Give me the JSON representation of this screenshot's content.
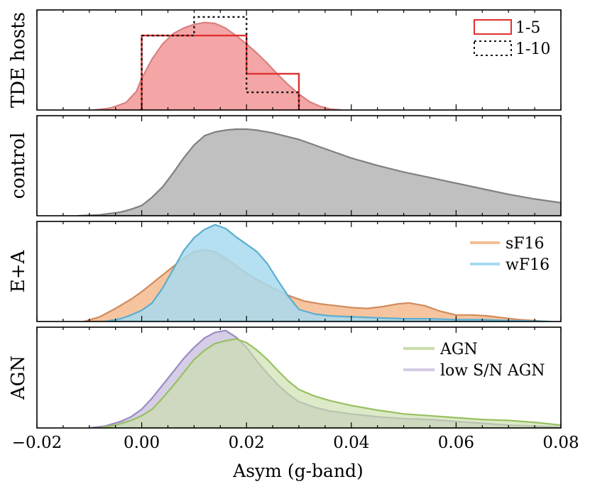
{
  "chart_data": {
    "type": "area",
    "xlabel": "Asym (g-band)",
    "xlim": [
      -0.02,
      0.08
    ],
    "xticks": [
      -0.02,
      0.0,
      0.02,
      0.04,
      0.06,
      0.08
    ],
    "xtick_labels": [
      "−0.02",
      "0.00",
      "0.02",
      "0.04",
      "0.06",
      "0.08"
    ],
    "panels": [
      {
        "ylabel": "TDE hosts",
        "ymax": 1.0,
        "series": [
          {
            "name": "TDE hosts KDE",
            "style": "fill",
            "fill": "#f4a6a6",
            "stroke": "#d98080",
            "x": [
              -0.009,
              -0.006,
              -0.003,
              -0.001,
              0.0,
              0.002,
              0.004,
              0.006,
              0.008,
              0.01,
              0.012,
              0.014,
              0.016,
              0.018,
              0.02,
              0.022,
              0.024,
              0.026,
              0.028,
              0.03,
              0.032,
              0.034,
              0.036,
              0.038
            ],
            "y": [
              0.0,
              0.02,
              0.08,
              0.2,
              0.34,
              0.55,
              0.71,
              0.82,
              0.88,
              0.92,
              0.94,
              0.93,
              0.88,
              0.8,
              0.71,
              0.61,
              0.5,
              0.38,
              0.27,
              0.17,
              0.09,
              0.04,
              0.01,
              0.0
            ]
          },
          {
            "name": "1-5",
            "style": "step",
            "color": "#e03030",
            "dash": "none",
            "edges": [
              0.0,
              0.01,
              0.02,
              0.03
            ],
            "heights": [
              0.8,
              0.8,
              0.39
            ]
          },
          {
            "name": "1-10",
            "style": "step",
            "color": "#111111",
            "dash": "3,4",
            "edges": [
              0.0,
              0.01,
              0.02,
              0.03
            ],
            "heights": [
              0.8,
              1.0,
              0.19
            ]
          }
        ],
        "legend": [
          {
            "label": "1-5",
            "type": "box",
            "color": "#e03030",
            "dash": "none"
          },
          {
            "label": "1-10",
            "type": "box",
            "color": "#111111",
            "dash": "3,4"
          }
        ]
      },
      {
        "ylabel": "control",
        "ymax": 1.0,
        "series": [
          {
            "name": "control",
            "style": "fill",
            "fill": "#c0c0c0",
            "stroke": "#808080",
            "x": [
              -0.012,
              -0.008,
              -0.004,
              -0.002,
              0.0,
              0.002,
              0.004,
              0.006,
              0.008,
              0.01,
              0.012,
              0.014,
              0.016,
              0.018,
              0.02,
              0.022,
              0.025,
              0.03,
              0.035,
              0.04,
              0.045,
              0.05,
              0.055,
              0.06,
              0.065,
              0.07,
              0.075,
              0.08
            ],
            "y": [
              0.0,
              0.01,
              0.04,
              0.07,
              0.11,
              0.2,
              0.31,
              0.46,
              0.62,
              0.76,
              0.86,
              0.9,
              0.92,
              0.93,
              0.93,
              0.92,
              0.89,
              0.82,
              0.72,
              0.62,
              0.54,
              0.47,
              0.41,
              0.35,
              0.29,
              0.23,
              0.18,
              0.14
            ]
          }
        ],
        "legend": []
      },
      {
        "ylabel": "E+A",
        "ymax": 1.0,
        "series": [
          {
            "name": "sF16",
            "style": "fill",
            "fill": "#f5be95",
            "stroke": "#d08c5c",
            "opacity": 0.9,
            "x": [
              -0.011,
              -0.008,
              -0.005,
              -0.002,
              0.0,
              0.002,
              0.004,
              0.006,
              0.008,
              0.01,
              0.012,
              0.014,
              0.016,
              0.018,
              0.02,
              0.022,
              0.025,
              0.028,
              0.031,
              0.034,
              0.037,
              0.04,
              0.043,
              0.046,
              0.049,
              0.051,
              0.054,
              0.057,
              0.06,
              0.063,
              0.066,
              0.069,
              0.072,
              0.075,
              0.077
            ],
            "y": [
              0.0,
              0.05,
              0.14,
              0.24,
              0.32,
              0.41,
              0.5,
              0.59,
              0.68,
              0.75,
              0.77,
              0.75,
              0.68,
              0.6,
              0.52,
              0.45,
              0.36,
              0.28,
              0.22,
              0.19,
              0.17,
              0.15,
              0.14,
              0.16,
              0.19,
              0.2,
              0.17,
              0.11,
              0.07,
              0.07,
              0.06,
              0.04,
              0.02,
              0.01,
              0.0
            ]
          },
          {
            "name": "wF16",
            "style": "fill",
            "fill": "#a8daef",
            "stroke": "#5aaed0",
            "opacity": 0.85,
            "x": [
              -0.007,
              -0.004,
              -0.002,
              0.0,
              0.002,
              0.004,
              0.006,
              0.008,
              0.01,
              0.012,
              0.014,
              0.016,
              0.018,
              0.02,
              0.022,
              0.024,
              0.026,
              0.028,
              0.03,
              0.033,
              0.036,
              0.04,
              0.045,
              0.05,
              0.055,
              0.06,
              0.065,
              0.07,
              0.075,
              0.078
            ],
            "y": [
              0.0,
              0.03,
              0.07,
              0.12,
              0.2,
              0.36,
              0.56,
              0.76,
              0.9,
              0.99,
              1.04,
              1.0,
              0.91,
              0.83,
              0.75,
              0.62,
              0.44,
              0.27,
              0.13,
              0.08,
              0.06,
              0.05,
              0.04,
              0.03,
              0.03,
              0.02,
              0.02,
              0.01,
              0.005,
              0.0
            ]
          }
        ],
        "legend": [
          {
            "label": "sF16",
            "type": "line",
            "color": "#f5be95"
          },
          {
            "label": "wF16",
            "type": "line",
            "color": "#a8daef"
          }
        ]
      },
      {
        "ylabel": "AGN",
        "ymax": 1.0,
        "series": [
          {
            "name": "low S/N AGN",
            "style": "fill",
            "fill": "#d4cbe6",
            "stroke": "#9a8cc0",
            "opacity": 0.95,
            "x": [
              -0.01,
              -0.007,
              -0.004,
              -0.002,
              0.0,
              0.002,
              0.004,
              0.006,
              0.008,
              0.01,
              0.012,
              0.014,
              0.016,
              0.018,
              0.02,
              0.022,
              0.024,
              0.026,
              0.028,
              0.03,
              0.033,
              0.036,
              0.04,
              0.045,
              0.05,
              0.055,
              0.06,
              0.065,
              0.07,
              0.075,
              0.08
            ],
            "y": [
              0.0,
              0.02,
              0.07,
              0.12,
              0.2,
              0.32,
              0.46,
              0.6,
              0.74,
              0.86,
              0.96,
              1.02,
              1.04,
              0.97,
              0.86,
              0.71,
              0.58,
              0.46,
              0.36,
              0.28,
              0.22,
              0.18,
              0.15,
              0.12,
              0.1,
              0.09,
              0.07,
              0.05,
              0.03,
              0.02,
              0.01
            ]
          },
          {
            "name": "AGN",
            "style": "fill",
            "fill": "#c9deaa",
            "stroke": "#98c060",
            "opacity": 0.65,
            "x": [
              -0.008,
              -0.005,
              -0.002,
              0.0,
              0.002,
              0.004,
              0.006,
              0.008,
              0.01,
              0.012,
              0.014,
              0.016,
              0.018,
              0.02,
              0.022,
              0.024,
              0.026,
              0.028,
              0.03,
              0.033,
              0.036,
              0.04,
              0.045,
              0.05,
              0.055,
              0.06,
              0.065,
              0.07,
              0.075,
              0.08
            ],
            "y": [
              0.0,
              0.03,
              0.08,
              0.13,
              0.2,
              0.32,
              0.45,
              0.59,
              0.73,
              0.83,
              0.9,
              0.93,
              0.95,
              0.91,
              0.83,
              0.73,
              0.61,
              0.5,
              0.41,
              0.34,
              0.29,
              0.24,
              0.19,
              0.15,
              0.13,
              0.11,
              0.09,
              0.08,
              0.06,
              0.03
            ]
          }
        ],
        "legend": [
          {
            "label": "AGN",
            "type": "line",
            "color": "#c9deaa"
          },
          {
            "label": "low S/N AGN",
            "type": "line",
            "color": "#d4cbe6"
          }
        ]
      }
    ]
  }
}
